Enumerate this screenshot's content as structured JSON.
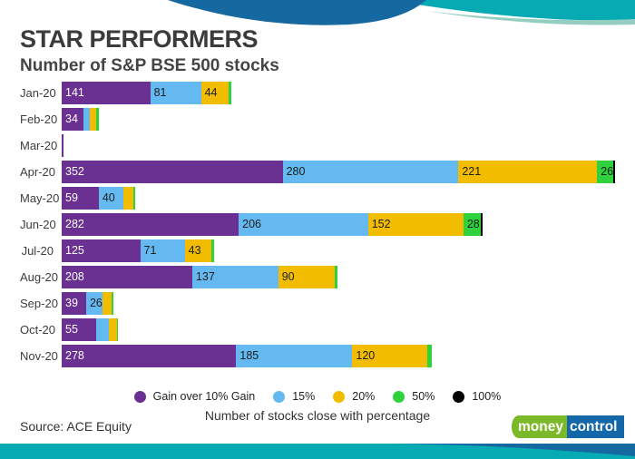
{
  "page": {
    "title": "STAR PERFORMERS",
    "subtitle": "Number of S&P BSE 500 stocks",
    "xlabel": "Number of stocks close with percentage",
    "source": "Source: ACE Equity",
    "logo": {
      "part1": "money",
      "part2": "control"
    }
  },
  "colors": {
    "purple": "#6a3193",
    "blue": "#63b9f0",
    "yellow": "#f2bc00",
    "green": "#2fd23c",
    "black": "#000000",
    "teal_band": "#06aab2",
    "mint_strip": "#93cec0",
    "dark_blue_wave": "#1669a0",
    "logo_green": "#7cb928",
    "logo_blue": "#1467a8"
  },
  "chart_data": {
    "type": "bar",
    "orientation": "horizontal",
    "stacked": true,
    "title": "STAR PERFORMERS",
    "subtitle": "Number of S&P BSE 500 stocks",
    "xlabel": "Number of stocks close with percentage",
    "xlim": [
      0,
      900
    ],
    "grid": false,
    "legend_position": "bottom",
    "categories": [
      "Jan-20",
      "Feb-20",
      "Mar-20",
      "Apr-20",
      "May-20",
      "Jun-20",
      "Jul-20",
      "Aug-20",
      "Sep-20",
      "Oct-20",
      "Nov-20"
    ],
    "series": [
      {
        "name": "Gain over 10% Gain",
        "color": "#6a3193",
        "label_color": "#ffffff",
        "values": [
          141,
          34,
          2,
          352,
          59,
          282,
          125,
          208,
          39,
          55,
          278
        ],
        "labels": [
          "141",
          "34",
          "",
          "352",
          "59",
          "282",
          "125",
          "208",
          "39",
          "55",
          "278"
        ]
      },
      {
        "name": "15%",
        "color": "#63b9f0",
        "label_color": "#1d1d1d",
        "values": [
          81,
          11,
          0,
          280,
          40,
          206,
          71,
          137,
          26,
          20,
          185
        ],
        "labels": [
          "81",
          "",
          "",
          "280",
          "40",
          "206",
          "71",
          "137",
          "26",
          "",
          "185"
        ]
      },
      {
        "name": "20%",
        "color": "#f2bc00",
        "label_color": "#1d1d1d",
        "values": [
          44,
          10,
          0,
          221,
          15,
          152,
          43,
          90,
          14,
          13,
          120
        ],
        "labels": [
          "44",
          "",
          "",
          "221",
          "",
          "152",
          "43",
          "90",
          "",
          "",
          "120"
        ]
      },
      {
        "name": "50%",
        "color": "#2fd23c",
        "label_color": "#1d1d1d",
        "values": [
          4,
          5,
          0,
          26,
          3,
          28,
          4,
          5,
          4,
          2,
          7
        ],
        "labels": [
          "",
          "",
          "",
          "26",
          "",
          "28",
          "",
          "",
          "",
          "",
          ""
        ]
      },
      {
        "name": "100%",
        "color": "#000000",
        "label_color": "#ffffff",
        "values": [
          0,
          0,
          0,
          3,
          0,
          3,
          0,
          0,
          0,
          0,
          0
        ],
        "labels": [
          "",
          "",
          "",
          "",
          "",
          "",
          "",
          "",
          "",
          "",
          ""
        ]
      }
    ]
  },
  "legend": {
    "items": [
      {
        "label": "Gain over 10% Gain",
        "color": "#6a3193"
      },
      {
        "label": "15%",
        "color": "#63b9f0"
      },
      {
        "label": "20%",
        "color": "#f2bc00"
      },
      {
        "label": "50%",
        "color": "#2fd23c"
      },
      {
        "label": "100%",
        "color": "#000000"
      }
    ]
  }
}
